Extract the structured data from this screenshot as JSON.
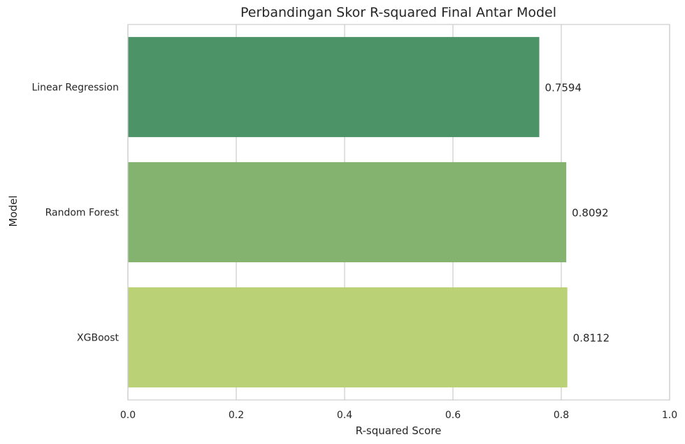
{
  "chart_data": {
    "type": "bar",
    "orientation": "horizontal",
    "title": "Perbandingan Skor R-squared Final Antar Model",
    "xlabel": "R-squared Score",
    "ylabel": "Model",
    "categories": [
      "Linear Regression",
      "Random Forest",
      "XGBoost"
    ],
    "values": [
      0.7594,
      0.8092,
      0.8112
    ],
    "data_labels": [
      "0.7594",
      "0.8092",
      "0.8112"
    ],
    "bar_colors": [
      "#4c9367",
      "#84b370",
      "#bad175"
    ],
    "xlim": [
      0.0,
      1.0
    ],
    "x_ticks": [
      0.0,
      0.2,
      0.4,
      0.6,
      0.8,
      1.0
    ],
    "x_tick_labels": [
      "0.0",
      "0.2",
      "0.4",
      "0.6",
      "0.8",
      "1.0"
    ],
    "grid": true,
    "grid_axis": "x"
  }
}
